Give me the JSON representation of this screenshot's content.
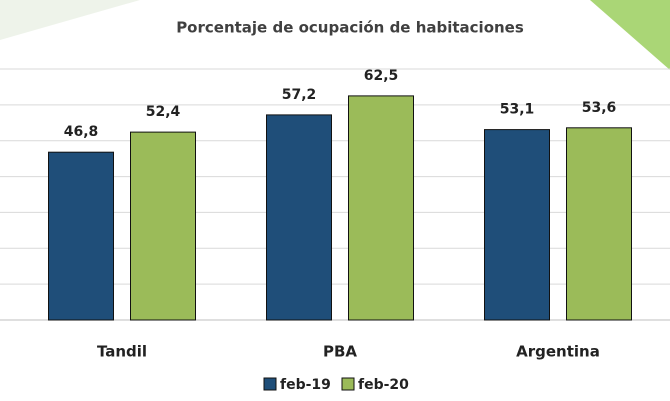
{
  "chart_data": {
    "type": "bar",
    "title": "Porcentaje de ocupación de habitaciones",
    "categories": [
      "Tandil",
      "PBA",
      "Argentina"
    ],
    "series": [
      {
        "name": "feb-19",
        "color": "#1f4e79",
        "values": [
          46.8,
          57.2,
          53.1
        ],
        "value_labels": [
          "46,8",
          "57,2",
          "53,1"
        ]
      },
      {
        "name": "feb-20",
        "color": "#9bbb59",
        "values": [
          52.4,
          62.5,
          53.6
        ],
        "value_labels": [
          "52,4",
          "62,5",
          "53,6"
        ]
      }
    ],
    "ylim": [
      0,
      70
    ],
    "yticks": [
      0,
      10,
      20,
      30,
      40,
      50,
      60,
      70
    ],
    "grid": true,
    "legend": "bottom"
  }
}
